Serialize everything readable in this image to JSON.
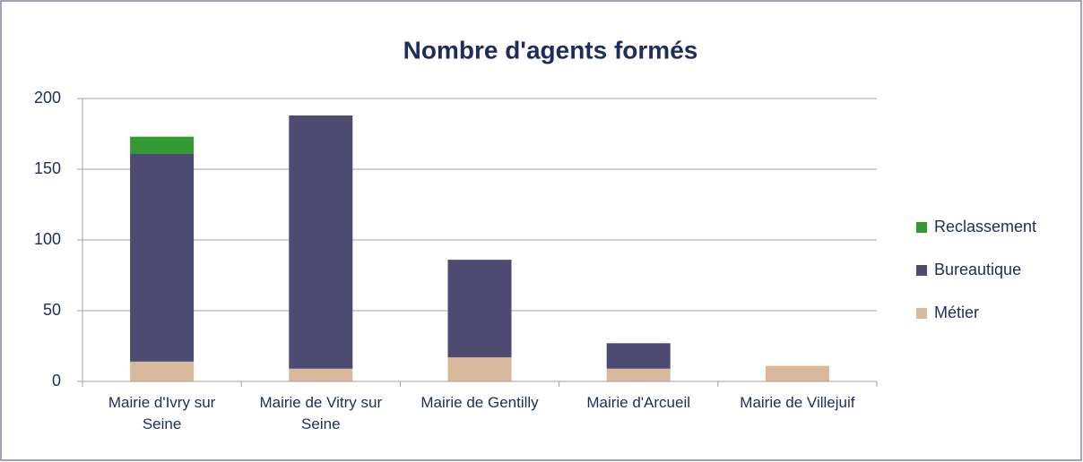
{
  "chart_data": {
    "type": "stacked_bar",
    "title": "Nombre d'agents formés",
    "categories": [
      "Mairie d'Ivry sur Seine",
      "Mairie de Vitry sur Seine",
      "Mairie de Gentilly",
      "Mairie d'Arcueil",
      "Mairie de Villejuif"
    ],
    "series": [
      {
        "name": "Métier",
        "color": "#d9b99b",
        "values": [
          14,
          9,
          17,
          9,
          11
        ]
      },
      {
        "name": "Bureautique",
        "color": "#4d4b72",
        "values": [
          147,
          179,
          69,
          18,
          0
        ]
      },
      {
        "name": "Reclassement",
        "color": "#339933",
        "values": [
          12,
          0,
          0,
          0,
          0
        ]
      }
    ],
    "ylim": [
      0,
      200
    ],
    "yticks": [
      0,
      50,
      100,
      150,
      200
    ],
    "grid": true,
    "legend": "right"
  }
}
